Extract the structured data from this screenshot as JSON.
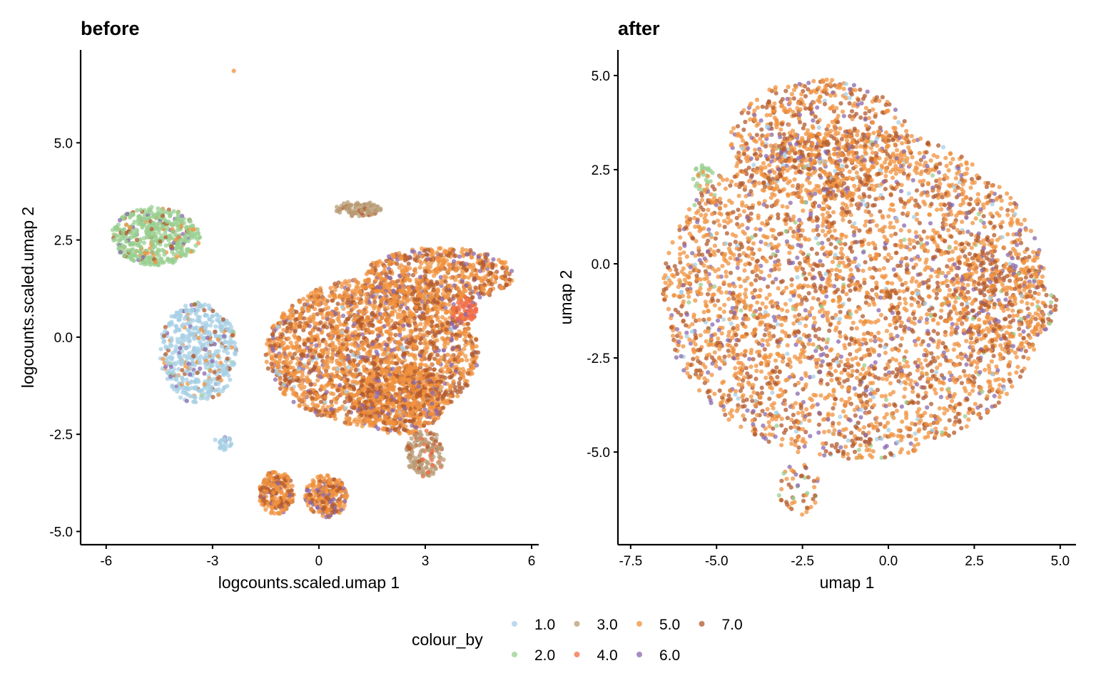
{
  "legend": {
    "title": "colour_by",
    "levels": [
      "1.0",
      "2.0",
      "3.0",
      "4.0",
      "5.0",
      "6.0",
      "7.0"
    ],
    "colors": {
      "1.0": "#a6cfe4",
      "2.0": "#98cf90",
      "3.0": "#b89b74",
      "4.0": "#f26c45",
      "5.0": "#f0913e",
      "6.0": "#8a68ad",
      "7.0": "#b35a2c"
    }
  },
  "chart_data": [
    {
      "type": "scatter",
      "title": "before",
      "xlabel": "logcounts.scaled.umap 1",
      "ylabel": "logcounts.scaled.umap 2",
      "xlim": [
        -6.72,
        6.2
      ],
      "ylim": [
        -5.34,
        7.39
      ],
      "xticks": [
        -6,
        -3,
        0,
        3,
        6
      ],
      "xtick_labels": [
        "-6",
        "-3",
        "0",
        "3",
        "6"
      ],
      "yticks": [
        -5,
        -2.5,
        0,
        2.5,
        5
      ],
      "ytick_labels": [
        "-5.0",
        "-2.5",
        "0.0",
        "2.5",
        "5.0"
      ],
      "clusters": [
        {
          "center": [
            -4.6,
            2.6
          ],
          "radius": [
            1.25,
            0.75
          ],
          "n": 500,
          "mix": {
            "2.0": 0.8,
            "5.0": 0.08,
            "7.0": 0.08,
            "6.0": 0.04
          }
        },
        {
          "center": [
            -3.4,
            -0.4
          ],
          "radius": [
            1.1,
            1.3
          ],
          "n": 550,
          "mix": {
            "1.0": 0.8,
            "5.0": 0.07,
            "7.0": 0.06,
            "6.0": 0.05,
            "2.0": 0.02
          }
        },
        {
          "center": [
            -2.7,
            -2.7
          ],
          "radius": [
            0.25,
            0.2
          ],
          "n": 25,
          "mix": {
            "1.0": 0.9,
            "6.0": 0.1
          }
        },
        {
          "center": [
            1.5,
            -0.4
          ],
          "radius": [
            3.0,
            1.9
          ],
          "n": 2400,
          "mix": {
            "5.0": 0.62,
            "7.0": 0.28,
            "6.0": 0.08,
            "1.0": 0.02
          }
        },
        {
          "center": [
            3.4,
            1.6
          ],
          "radius": [
            2.1,
            0.7
          ],
          "n": 600,
          "mix": {
            "5.0": 0.6,
            "7.0": 0.3,
            "6.0": 0.1
          }
        },
        {
          "center": [
            2.3,
            -1.6
          ],
          "radius": [
            1.3,
            0.9
          ],
          "n": 500,
          "mix": {
            "5.0": 0.55,
            "7.0": 0.35,
            "6.0": 0.1
          }
        },
        {
          "center": [
            4.1,
            0.7
          ],
          "radius": [
            0.35,
            0.35
          ],
          "n": 90,
          "mix": {
            "4.0": 0.85,
            "6.0": 0.15
          }
        },
        {
          "center": [
            1.1,
            3.3
          ],
          "radius": [
            0.65,
            0.2
          ],
          "n": 90,
          "mix": {
            "3.0": 0.9,
            "7.0": 0.1
          }
        },
        {
          "center": [
            3.0,
            -3.0
          ],
          "radius": [
            0.55,
            0.6
          ],
          "n": 160,
          "mix": {
            "3.0": 0.75,
            "7.0": 0.15,
            "4.0": 0.1
          }
        },
        {
          "center": [
            -1.2,
            -4.0
          ],
          "radius": [
            0.5,
            0.55
          ],
          "n": 220,
          "mix": {
            "5.0": 0.55,
            "7.0": 0.35,
            "6.0": 0.1
          }
        },
        {
          "center": [
            0.2,
            -4.1
          ],
          "radius": [
            0.6,
            0.55
          ],
          "n": 260,
          "mix": {
            "5.0": 0.6,
            "7.0": 0.3,
            "6.0": 0.1
          }
        },
        {
          "center": [
            -2.4,
            6.85
          ],
          "radius": [
            0.0,
            0.0
          ],
          "n": 1,
          "mix": {
            "5.0": 1
          }
        }
      ]
    },
    {
      "type": "scatter",
      "title": "after",
      "xlabel": "umap 1",
      "ylabel": "umap 2",
      "xlim": [
        -7.87,
        5.46
      ],
      "ylim": [
        -7.46,
        5.68
      ],
      "xticks": [
        -7.5,
        -5,
        -2.5,
        0,
        2.5,
        5
      ],
      "xtick_labels": [
        "-7.5",
        "-5.0",
        "-2.5",
        "0.0",
        "2.5",
        "5.0"
      ],
      "yticks": [
        -5,
        -2.5,
        0,
        2.5,
        5
      ],
      "ytick_labels": [
        "-5.0",
        "-2.5",
        "0.0",
        "2.5",
        "5.0"
      ],
      "clusters": [
        {
          "center": [
            -1.0,
            -0.8
          ],
          "radius": [
            5.6,
            4.4
          ],
          "n": 3600,
          "mix": {
            "5.0": 0.55,
            "7.0": 0.3,
            "6.0": 0.1,
            "1.0": 0.03,
            "2.0": 0.02
          }
        },
        {
          "center": [
            -2.0,
            3.3
          ],
          "radius": [
            2.6,
            1.6
          ],
          "n": 700,
          "mix": {
            "5.0": 0.55,
            "7.0": 0.3,
            "6.0": 0.12,
            "1.0": 0.03
          }
        },
        {
          "center": [
            3.3,
            -1.0
          ],
          "radius": [
            1.6,
            1.4
          ],
          "n": 300,
          "mix": {
            "5.0": 0.5,
            "7.0": 0.35,
            "6.0": 0.12,
            "2.0": 0.03
          }
        },
        {
          "center": [
            -5.4,
            2.3
          ],
          "radius": [
            0.3,
            0.35
          ],
          "n": 30,
          "mix": {
            "2.0": 0.8,
            "5.0": 0.2
          }
        },
        {
          "center": [
            -2.6,
            -6.0
          ],
          "radius": [
            0.6,
            0.7
          ],
          "n": 50,
          "mix": {
            "5.0": 0.4,
            "7.0": 0.4,
            "6.0": 0.1,
            "2.0": 0.1
          }
        }
      ]
    }
  ]
}
